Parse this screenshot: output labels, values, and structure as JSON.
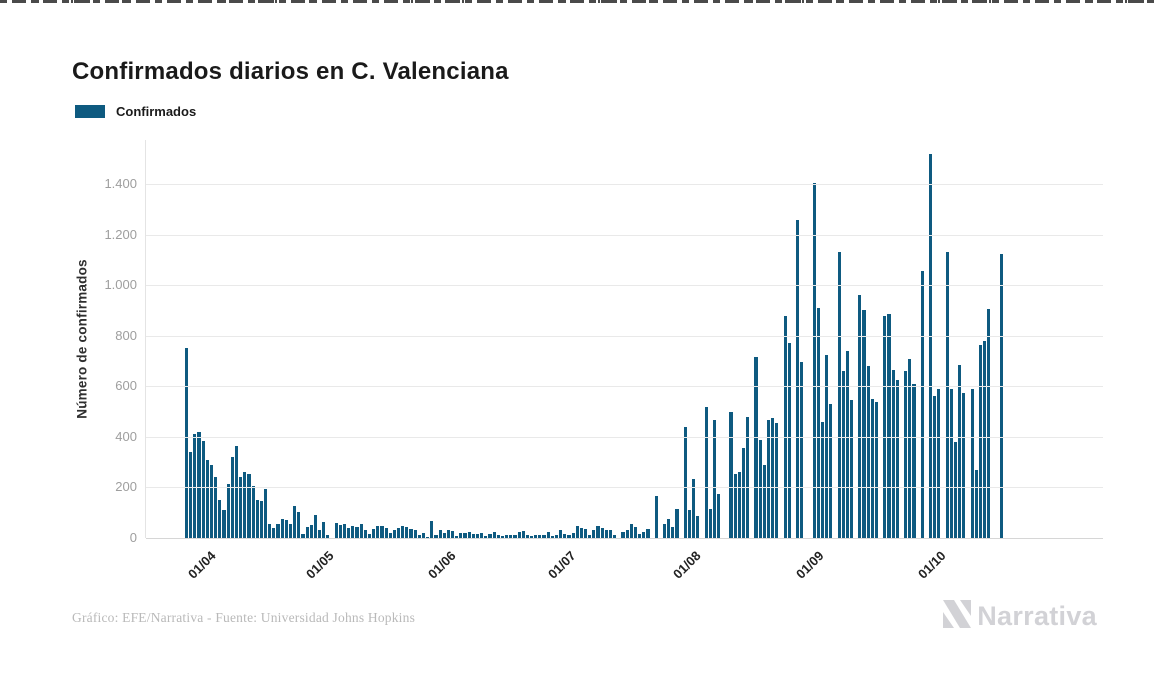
{
  "page": {
    "title": "Confirmados diarios en C. Valenciana"
  },
  "chart_data": {
    "type": "bar",
    "title": "Confirmados diarios en C. Valenciana",
    "xlabel": "",
    "ylabel": "Número de confirmados",
    "grid": true,
    "legend_position": "top-left",
    "ylim": [
      0,
      1550
    ],
    "y_tick_values": [
      0,
      200,
      400,
      600,
      800,
      1000,
      1200,
      1400
    ],
    "y_tick_labels": [
      "0",
      "200",
      "400",
      "600",
      "800",
      "1.000",
      "1.200",
      "1.400"
    ],
    "x_tick_labels": [
      "01/04",
      "01/05",
      "01/06",
      "01/07",
      "01/08",
      "01/09",
      "01/10"
    ],
    "series": [
      {
        "name": "Confirmados",
        "color": "#0E5A80",
        "values": [
          750,
          340,
          412,
          421,
          383,
          307,
          287,
          240,
          149,
          112,
          214,
          320,
          366,
          241,
          260,
          255,
          205,
          150,
          145,
          195,
          57,
          41,
          57,
          76,
          70,
          57,
          125,
          103,
          17,
          43,
          53,
          92,
          30,
          63,
          11,
          0,
          59,
          50,
          57,
          39,
          46,
          43,
          55,
          30,
          17,
          37,
          46,
          46,
          41,
          20,
          30,
          41,
          46,
          43,
          37,
          30,
          11,
          20,
          4,
          66,
          11,
          30,
          20,
          30,
          26,
          7,
          20,
          20,
          24,
          17,
          17,
          20,
          9,
          17,
          24,
          11,
          7,
          11,
          14,
          11,
          24,
          26,
          11,
          7,
          11,
          11,
          14,
          24,
          7,
          11,
          30,
          17,
          11,
          20,
          46,
          40,
          37,
          13,
          30,
          46,
          41,
          30,
          30,
          11,
          0,
          24,
          30,
          54,
          43,
          17,
          24,
          37,
          0,
          168,
          0,
          57,
          76,
          43,
          116,
          0,
          441,
          109,
          234,
          86,
          0,
          520,
          116,
          467,
          175,
          0,
          0,
          497,
          254,
          260,
          357,
          480,
          0,
          715,
          386,
          287,
          467,
          475,
          454,
          0,
          878,
          770,
          0,
          1257,
          695,
          0,
          0,
          1403,
          908,
          458,
          725,
          530,
          0,
          1133,
          660,
          741,
          547,
          0,
          962,
          901,
          682,
          550,
          537,
          0,
          879,
          888,
          666,
          626,
          0,
          662,
          708,
          609,
          0,
          1057,
          0,
          1517,
          563,
          590,
          0,
          1132,
          590,
          379,
          686,
          572,
          0,
          590,
          270,
          763,
          780,
          905,
          0,
          0,
          1125
        ]
      }
    ]
  },
  "footer": {
    "credit": "Gráfico: EFE/Narrativa - Fuente: Universidad Johns Hopkins",
    "brand": "Narrativa"
  },
  "colors": {
    "accent": "#0E5A80",
    "grid": "#e9e9e9",
    "baseline": "#d6d6d6",
    "tick_text": "#9e9e9e",
    "title_text": "#1a1a1a",
    "credit_text": "#b9b9b9",
    "logo": "#d2d2d6"
  }
}
